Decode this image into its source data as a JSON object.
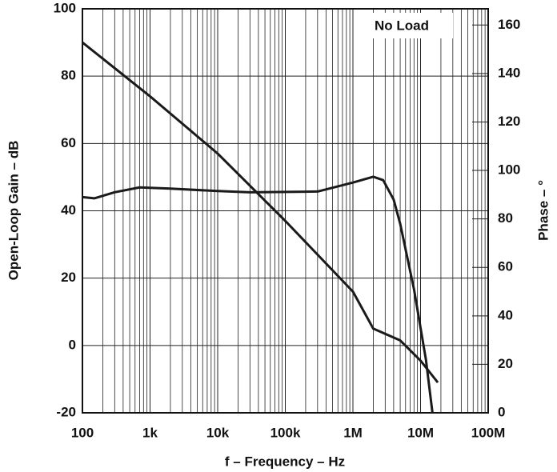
{
  "chart_data": {
    "type": "line",
    "annotation": "No Load",
    "xlabel": "f – Frequency – Hz",
    "ylabel": "Open-Loop Gain – dB",
    "y2label": "Phase – °",
    "xscale": "log",
    "grid": true,
    "color": "#1a1a1a",
    "xlim": [
      100,
      100000000
    ],
    "xticks": [
      100,
      {
        "value": 1000,
        "label": "1k"
      },
      {
        "value": 10000,
        "label": "10k"
      },
      {
        "value": 100000,
        "label": "100k"
      },
      {
        "value": 1000000,
        "label": "1M"
      },
      {
        "value": 10000000,
        "label": "10M"
      },
      {
        "value": 100000000,
        "label": "100M"
      }
    ],
    "ylim": [
      -20,
      100
    ],
    "yticks": [
      -20,
      0,
      20,
      40,
      60,
      80,
      100
    ],
    "y2lim": [
      0,
      166.7
    ],
    "y2ticks": [
      0,
      20,
      40,
      60,
      80,
      100,
      120,
      140,
      160
    ],
    "series": [
      {
        "axis": "y",
        "x": [
          100,
          1000,
          10000,
          100000,
          1000000,
          2000000,
          5000000,
          10000000,
          18000000
        ],
        "values": [
          90,
          74,
          57,
          37,
          16,
          5,
          1.5,
          -4.5,
          -11
        ]
      },
      {
        "axis": "y2",
        "x": [
          100,
          150,
          300,
          700,
          2000,
          10000,
          30000,
          300000,
          1000000,
          2000000,
          2800000,
          4000000,
          5000000,
          8000000,
          12000000,
          15000000
        ],
        "values": [
          89,
          88.5,
          91,
          93,
          92.5,
          91.5,
          91,
          91.3,
          95,
          97.4,
          96,
          88,
          78,
          51,
          22,
          0
        ]
      }
    ]
  }
}
